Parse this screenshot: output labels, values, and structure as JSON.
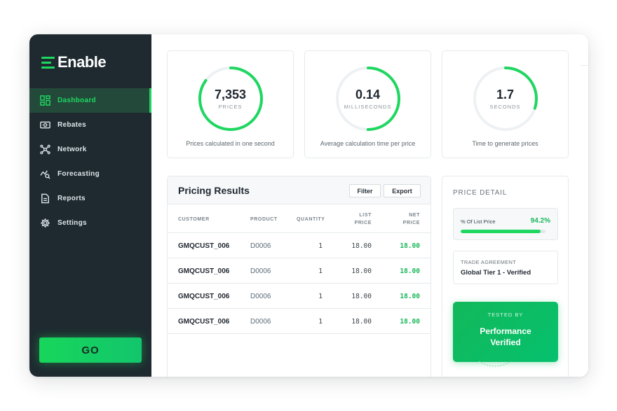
{
  "brand": {
    "name": "Enable",
    "accent": "#1ed760",
    "sidebar_bg": "#1e2a30"
  },
  "sidebar": {
    "items": [
      {
        "label": "Dashboard",
        "icon": "dashboard-grid-icon",
        "active": true
      },
      {
        "label": "Rebates",
        "icon": "cash-icon",
        "active": false
      },
      {
        "label": "Network",
        "icon": "network-icon",
        "active": false
      },
      {
        "label": "Forecasting",
        "icon": "forecast-chart-icon",
        "active": false
      },
      {
        "label": "Reports",
        "icon": "document-icon",
        "active": false
      },
      {
        "label": "Settings",
        "icon": "gear-icon",
        "active": false
      }
    ],
    "go_label": "GO"
  },
  "stats": [
    {
      "value": "7,353",
      "unit": "PRICES",
      "caption": "Prices calculated in one second",
      "ring_progress": 0.85
    },
    {
      "value": "0.14",
      "unit": "MILLISECONDS",
      "caption": "Average calculation time per price",
      "ring_progress": 0.5
    },
    {
      "value": "1.7",
      "unit": "SECONDS",
      "caption": "Time to generate prices",
      "ring_progress": 0.3
    }
  ],
  "results": {
    "title": "Pricing Results",
    "filter_label": "Filter",
    "export_label": "Export",
    "columns": {
      "customer": "CUSTOMER",
      "product": "PRODUCT",
      "quantity": "QUANTITY",
      "list_price_1": "LIST",
      "list_price_2": "PRICE",
      "net_price_1": "NET",
      "net_price_2": "PRICE"
    },
    "rows": [
      {
        "customer": "GMQCUST_006",
        "product": "D0006",
        "quantity": "1",
        "list_price": "18.00",
        "net_price": "18.00"
      },
      {
        "customer": "GMQCUST_006",
        "product": "D0006",
        "quantity": "1",
        "list_price": "18.00",
        "net_price": "18.00"
      },
      {
        "customer": "GMQCUST_006",
        "product": "D0006",
        "quantity": "1",
        "list_price": "18.00",
        "net_price": "18.00"
      },
      {
        "customer": "GMQCUST_006",
        "product": "D0006",
        "quantity": "1",
        "list_price": "18.00",
        "net_price": "18.00"
      }
    ]
  },
  "detail": {
    "title": "PRICE DETAIL",
    "pct_label": "% Of List Price",
    "pct_value": "94.2%",
    "pct_fraction": 0.942,
    "trade_label": "TRADE AGREEMENT",
    "trade_value": "Global Tier 1 - Verified",
    "tested_label": "TESTED BY",
    "tested_value": "Performance Verified"
  }
}
